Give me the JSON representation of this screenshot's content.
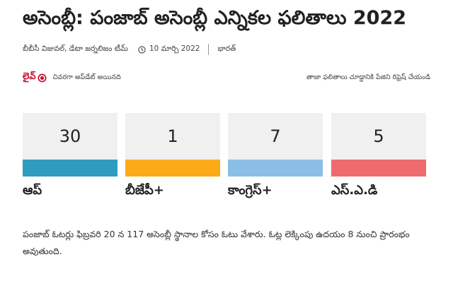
{
  "article": {
    "title": "అసెంబ్లీ: పంజాబ్ అసెంబ్లీ ఎన్నికల ఫలితాలు 2022",
    "byline": {
      "author": "బీబీసీ విజువల్, డేటా జర్నలిజం టీమ్",
      "date": "10 మార్చి 2022",
      "section": "భారత్",
      "clock_icon": "clock-icon"
    }
  },
  "live": {
    "label": "లైవ్",
    "status": "చివరగా అప్‌డేట్ అయినది",
    "refresh_note": "తాజా ఫలితాలు చూడ్డానికి పేజిని రిఫ్రెష్ చేయండి",
    "icon": "live-dot-icon",
    "accent_color": "#c8102e"
  },
  "results": [
    {
      "party": "ఆప్",
      "seats": "30",
      "color": "#2f9bbf"
    },
    {
      "party": "బీజేపీ+",
      "seats": "1",
      "color": "#fbab18"
    },
    {
      "party": "కాంగ్రెస్+",
      "seats": "7",
      "color": "#8bbfe6"
    },
    {
      "party": "ఎస్.ఎ.డి",
      "seats": "5",
      "color": "#ee6b6e"
    }
  ],
  "summary": "పంజాబ్ ఓటర్లు ఫిబ్రవరి 20 న 117 అసెంబ్లీ స్థానాల కోసం ఓటు వేశారు. ఓట్ల లెక్కింపు ఉదయం 8 నుంచి ప్రారంభం అవుతుంది."
}
